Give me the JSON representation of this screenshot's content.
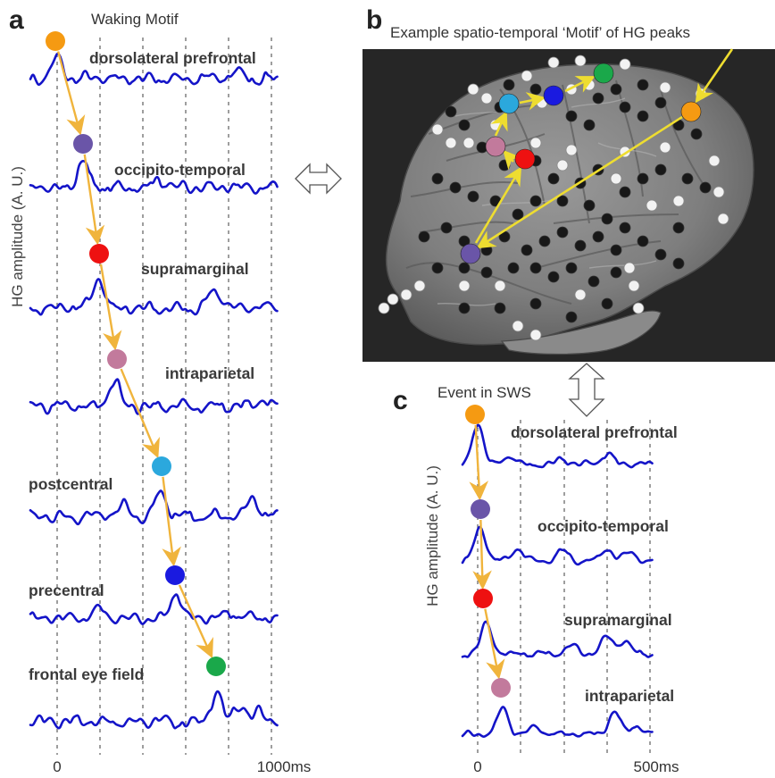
{
  "figure": {
    "panel_a": {
      "letter": "a",
      "title": "Waking Motif",
      "ylabel": "HG amplitude (A. U.)",
      "x_ticks": [
        "0",
        "1000ms"
      ],
      "regions": [
        "dorsolateral prefrontal",
        "occipito-temporal",
        "supramarginal",
        "intraparietal",
        "postcentral",
        "precentral",
        "frontal eye field"
      ]
    },
    "panel_b": {
      "letter": "b",
      "title": "Example spatio-temporal ‘Motif’ of HG peaks"
    },
    "panel_c": {
      "letter": "c",
      "title": "Event in SWS",
      "ylabel": "HG amplitude (A. U.)",
      "x_ticks": [
        "0",
        "500ms"
      ],
      "regions": [
        "dorsolateral prefrontal",
        "occipito-temporal",
        "supramarginal",
        "intraparietal"
      ]
    }
  },
  "colors": {
    "trace": "#1414c8",
    "motif_arrow": "#f0b43c",
    "brain_arrow": "#eedd30",
    "brain_background": "#262626",
    "dorsolateral prefrontal": "#f59a12",
    "occipito-temporal": "#6a55a8",
    "supramarginal": "#ee1111",
    "intraparietal": "#c27a9c",
    "postcentral": "#2ba8dd",
    "precentral": "#1a1ae0",
    "frontal eye field": "#1aa84a"
  },
  "icons": [
    "double-arrow-horizontal-icon",
    "double-arrow-vertical-icon"
  ]
}
